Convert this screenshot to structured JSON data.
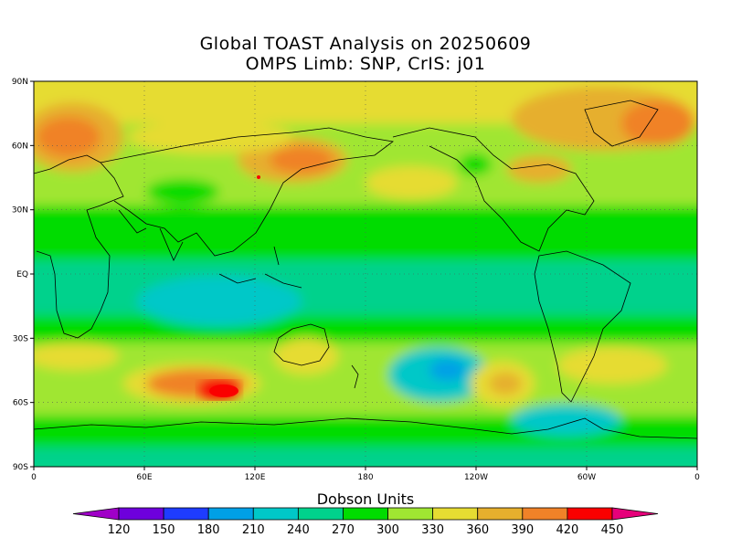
{
  "title_line1": "Global TOAST Analysis on 20250609",
  "title_line2": "OMPS Limb: SNP,  CrIS: j01",
  "lat_labels": [
    "90N",
    "60N",
    "30N",
    "EQ",
    "30S",
    "60S",
    "90S"
  ],
  "lon_labels": [
    "0",
    "60E",
    "120E",
    "180",
    "120W",
    "60W",
    "0"
  ],
  "colorbar": {
    "title": "Dobson Units",
    "ticks": [
      "120",
      "150",
      "180",
      "210",
      "240",
      "270",
      "300",
      "330",
      "360",
      "390",
      "420",
      "450"
    ],
    "colors": [
      "#a000c8",
      "#6e00dc",
      "#1e3cff",
      "#00a0e6",
      "#00c8c8",
      "#00d28c",
      "#00dc00",
      "#a0e632",
      "#e6dc32",
      "#e6af2d",
      "#f08228",
      "#fa0000",
      "#e6007a"
    ]
  }
}
